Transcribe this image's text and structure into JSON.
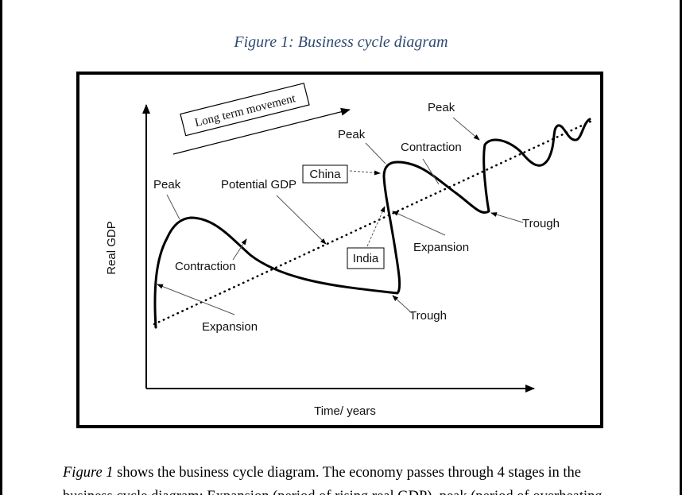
{
  "caption": "Figure 1: Business cycle diagram",
  "diagram": {
    "axis_y_label": "Real GDP",
    "axis_x_label": "Time/ years",
    "long_term_box": "Long term movement",
    "labels": {
      "peak_1": "Peak",
      "peak_2": "Peak",
      "peak_3": "Peak",
      "potential_gdp": "Potential GDP",
      "contraction_1": "Contraction",
      "contraction_2": "Contraction",
      "expansion_1": "Expansion",
      "expansion_2": "Expansion",
      "trough_1": "Trough",
      "trough_2": "Trough",
      "china": "China",
      "india": "India"
    }
  },
  "paragraph": {
    "lead_italic": "Figure 1",
    "line_1_rest": " shows the business cycle diagram. The economy passes through 4 stages in the",
    "line_2": "business cycle diagram: Expansion (period of rising real GDP), peak (period of overheating"
  }
}
